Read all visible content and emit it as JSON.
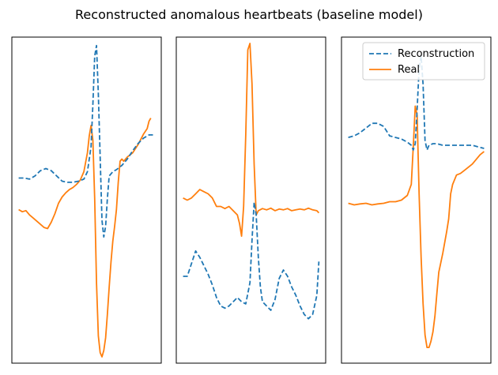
{
  "figure": {
    "title": "Reconstructed anomalous heartbeats (baseline model)"
  },
  "colors": {
    "reconstruction": "#1f77b4",
    "real": "#ff7f0e",
    "frame": "#000000"
  },
  "legend": {
    "placement": "upper-right of third panel",
    "entries": [
      {
        "label": "Reconstruction",
        "style": "dashed",
        "color": "#1f77b4"
      },
      {
        "label": "Real",
        "style": "solid",
        "color": "#ff7f0e"
      }
    ]
  },
  "chart_data": [
    {
      "type": "line",
      "title": "",
      "xlabel": "",
      "ylabel": "",
      "xticks": "hidden",
      "yticks": "hidden",
      "grid": false,
      "ylim": [
        -8.8,
        6.7
      ],
      "series": [
        {
          "name": "Reconstruction",
          "style": "dashed",
          "color": "#1f77b4",
          "points": [
            [
              0,
              0
            ],
            [
              3,
              0
            ],
            [
              6,
              -0.05
            ],
            [
              9,
              0.1
            ],
            [
              12,
              0.35
            ],
            [
              15,
              0.45
            ],
            [
              18,
              0.35
            ],
            [
              21,
              0.1
            ],
            [
              24,
              -0.15
            ],
            [
              27,
              -0.2
            ],
            [
              30,
              -0.2
            ],
            [
              33,
              -0.15
            ],
            [
              36,
              -0.05
            ],
            [
              38,
              0.3
            ],
            [
              40,
              1.5
            ],
            [
              41,
              3.5
            ],
            [
              42,
              5.8
            ],
            [
              43,
              6.3
            ],
            [
              44,
              4
            ],
            [
              45,
              1
            ],
            [
              46,
              -2
            ],
            [
              47,
              -2.8
            ],
            [
              48,
              -2.3
            ],
            [
              49,
              -1
            ],
            [
              50,
              0.1
            ],
            [
              52,
              0.3
            ],
            [
              54,
              0.4
            ],
            [
              57,
              0.6
            ],
            [
              60,
              0.9
            ],
            [
              63,
              1.3
            ],
            [
              66,
              1.65
            ],
            [
              69,
              1.9
            ],
            [
              72,
              2.05
            ],
            [
              75,
              2.05
            ]
          ]
        },
        {
          "name": "Real",
          "style": "solid",
          "color": "#ff7f0e",
          "points": [
            [
              0,
              -1.5
            ],
            [
              2,
              -1.6
            ],
            [
              4,
              -1.55
            ],
            [
              6,
              -1.75
            ],
            [
              8,
              -1.9
            ],
            [
              10,
              -2.05
            ],
            [
              12,
              -2.2
            ],
            [
              14,
              -2.35
            ],
            [
              16,
              -2.4
            ],
            [
              18,
              -2.1
            ],
            [
              20,
              -1.7
            ],
            [
              22,
              -1.2
            ],
            [
              24,
              -0.9
            ],
            [
              26,
              -0.7
            ],
            [
              28,
              -0.55
            ],
            [
              30,
              -0.45
            ],
            [
              32,
              -0.3
            ],
            [
              34,
              -0.1
            ],
            [
              36,
              0.3
            ],
            [
              38,
              1.2
            ],
            [
              39,
              2
            ],
            [
              40,
              2.5
            ],
            [
              41,
              1.8
            ],
            [
              42,
              -1
            ],
            [
              43,
              -5
            ],
            [
              44,
              -7.5
            ],
            [
              45,
              -8.3
            ],
            [
              46,
              -8.5
            ],
            [
              47,
              -8.2
            ],
            [
              48,
              -7.6
            ],
            [
              49,
              -6.5
            ],
            [
              50,
              -5.2
            ],
            [
              51,
              -4
            ],
            [
              52,
              -3
            ],
            [
              53,
              -2.3
            ],
            [
              54,
              -1.5
            ],
            [
              55,
              -0.2
            ],
            [
              56,
              0.8
            ],
            [
              57,
              0.9
            ],
            [
              58,
              0.8
            ],
            [
              60,
              1
            ],
            [
              63,
              1.2
            ],
            [
              66,
              1.6
            ],
            [
              69,
              2.1
            ],
            [
              71,
              2.35
            ],
            [
              72,
              2.7
            ],
            [
              73,
              2.85
            ]
          ]
        }
      ]
    },
    {
      "type": "line",
      "title": "",
      "xlabel": "",
      "ylabel": "",
      "xticks": "hidden",
      "yticks": "hidden",
      "grid": false,
      "ylim": [
        -4.4,
        3.3
      ],
      "series": [
        {
          "name": "Reconstruction",
          "style": "dashed",
          "color": "#1f77b4",
          "points": [
            [
              0,
              -2.35
            ],
            [
              2,
              -2.35
            ],
            [
              4,
              -2.05
            ],
            [
              6,
              -1.75
            ],
            [
              8,
              -1.9
            ],
            [
              10,
              -2.1
            ],
            [
              12,
              -2.3
            ],
            [
              14,
              -2.55
            ],
            [
              16,
              -2.85
            ],
            [
              18,
              -3.05
            ],
            [
              20,
              -3.1
            ],
            [
              22,
              -3.05
            ],
            [
              24,
              -2.95
            ],
            [
              26,
              -2.85
            ],
            [
              28,
              -2.95
            ],
            [
              30,
              -3
            ],
            [
              32,
              -2.5
            ],
            [
              33,
              -1.5
            ],
            [
              34,
              -0.6
            ],
            [
              35,
              -0.9
            ],
            [
              36,
              -1.9
            ],
            [
              37,
              -2.6
            ],
            [
              38,
              -2.95
            ],
            [
              40,
              -3.05
            ],
            [
              42,
              -3.15
            ],
            [
              44,
              -2.9
            ],
            [
              46,
              -2.4
            ],
            [
              48,
              -2.2
            ],
            [
              50,
              -2.35
            ],
            [
              52,
              -2.6
            ],
            [
              54,
              -2.8
            ],
            [
              56,
              -3.05
            ],
            [
              58,
              -3.25
            ],
            [
              60,
              -3.35
            ],
            [
              62,
              -3.25
            ],
            [
              64,
              -2.8
            ],
            [
              65,
              -2
            ]
          ]
        },
        {
          "name": "Real",
          "style": "solid",
          "color": "#ff7f0e",
          "points": [
            [
              0,
              -0.5
            ],
            [
              2,
              -0.55
            ],
            [
              4,
              -0.5
            ],
            [
              6,
              -0.4
            ],
            [
              8,
              -0.3
            ],
            [
              10,
              -0.35
            ],
            [
              12,
              -0.4
            ],
            [
              14,
              -0.5
            ],
            [
              16,
              -0.7
            ],
            [
              18,
              -0.7
            ],
            [
              20,
              -0.75
            ],
            [
              22,
              -0.7
            ],
            [
              24,
              -0.8
            ],
            [
              26,
              -0.9
            ],
            [
              27,
              -1.1
            ],
            [
              28,
              -1.4
            ],
            [
              29,
              -0.7
            ],
            [
              30,
              1
            ],
            [
              31,
              3
            ],
            [
              32,
              3.15
            ],
            [
              33,
              2.2
            ],
            [
              34,
              0.3
            ],
            [
              35,
              -0.9
            ],
            [
              36,
              -0.8
            ],
            [
              38,
              -0.75
            ],
            [
              40,
              -0.78
            ],
            [
              42,
              -0.74
            ],
            [
              44,
              -0.8
            ],
            [
              46,
              -0.76
            ],
            [
              48,
              -0.78
            ],
            [
              50,
              -0.75
            ],
            [
              52,
              -0.8
            ],
            [
              54,
              -0.78
            ],
            [
              56,
              -0.76
            ],
            [
              58,
              -0.78
            ],
            [
              60,
              -0.74
            ],
            [
              62,
              -0.78
            ],
            [
              64,
              -0.8
            ],
            [
              65,
              -0.85
            ]
          ]
        }
      ]
    },
    {
      "type": "line",
      "title": "",
      "xlabel": "",
      "ylabel": "",
      "xticks": "hidden",
      "yticks": "hidden",
      "grid": false,
      "ylim": [
        -6.9,
        3.5
      ],
      "series": [
        {
          "name": "Reconstruction",
          "style": "dashed",
          "color": "#1f77b4",
          "points": [
            [
              0,
              0.3
            ],
            [
              3,
              0.35
            ],
            [
              6,
              0.45
            ],
            [
              9,
              0.6
            ],
            [
              12,
              0.75
            ],
            [
              15,
              0.75
            ],
            [
              18,
              0.65
            ],
            [
              21,
              0.35
            ],
            [
              24,
              0.3
            ],
            [
              27,
              0.25
            ],
            [
              30,
              0.15
            ],
            [
              32,
              0.05
            ],
            [
              33,
              -0.1
            ],
            [
              34,
              0.1
            ],
            [
              35,
              1.2
            ],
            [
              36,
              2.5
            ],
            [
              37,
              2.9
            ],
            [
              38,
              2
            ],
            [
              39,
              0.2
            ],
            [
              40,
              -0.1
            ],
            [
              41,
              0.05
            ],
            [
              43,
              0.1
            ],
            [
              45,
              0.1
            ],
            [
              48,
              0.05
            ],
            [
              51,
              0.05
            ],
            [
              54,
              0.05
            ],
            [
              57,
              0.05
            ],
            [
              60,
              0.05
            ],
            [
              63,
              0.05
            ],
            [
              66,
              0
            ],
            [
              69,
              -0.05
            ]
          ]
        },
        {
          "name": "Real",
          "style": "solid",
          "color": "#ff7f0e",
          "points": [
            [
              0,
              -1.8
            ],
            [
              3,
              -1.85
            ],
            [
              6,
              -1.82
            ],
            [
              9,
              -1.8
            ],
            [
              12,
              -1.85
            ],
            [
              15,
              -1.82
            ],
            [
              18,
              -1.8
            ],
            [
              21,
              -1.75
            ],
            [
              24,
              -1.75
            ],
            [
              27,
              -1.7
            ],
            [
              30,
              -1.55
            ],
            [
              32,
              -1.2
            ],
            [
              33,
              0
            ],
            [
              34,
              1.3
            ],
            [
              35,
              1
            ],
            [
              36,
              -1.5
            ],
            [
              37,
              -3.5
            ],
            [
              38,
              -5
            ],
            [
              39,
              -6
            ],
            [
              40,
              -6.4
            ],
            [
              41,
              -6.4
            ],
            [
              42,
              -6.2
            ],
            [
              43,
              -5.9
            ],
            [
              44,
              -5.4
            ],
            [
              45,
              -4.7
            ],
            [
              46,
              -4
            ],
            [
              48,
              -3.4
            ],
            [
              50,
              -2.7
            ],
            [
              51,
              -2.3
            ],
            [
              52,
              -1.5
            ],
            [
              53,
              -1.2
            ],
            [
              55,
              -0.9
            ],
            [
              57,
              -0.85
            ],
            [
              59,
              -0.75
            ],
            [
              61,
              -0.65
            ],
            [
              63,
              -0.55
            ],
            [
              65,
              -0.4
            ],
            [
              67,
              -0.25
            ],
            [
              69,
              -0.15
            ]
          ]
        }
      ]
    }
  ]
}
